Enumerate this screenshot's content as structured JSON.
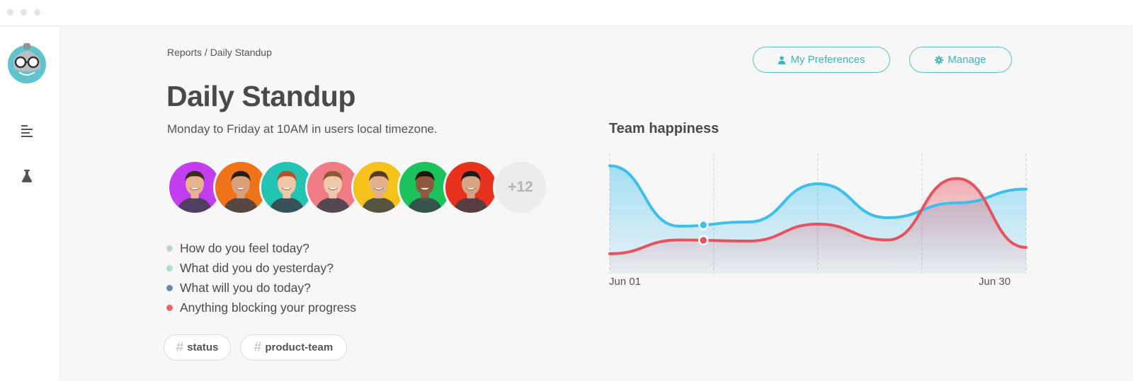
{
  "breadcrumb": "Reports / Daily Standup",
  "title": "Daily Standup",
  "subtitle": "Monday to Friday at 10AM in users local timezone.",
  "buttons": {
    "preferences": "My Preferences",
    "manage": "Manage"
  },
  "avatars": {
    "colors": [
      "#c23ef0",
      "#f0731a",
      "#24c4b4",
      "#f07c86",
      "#f5c21a",
      "#1cc25c",
      "#e8321e"
    ],
    "more": "+12"
  },
  "questions": [
    {
      "text": "How do you feel today?",
      "color": "#b7d6d8"
    },
    {
      "text": "What did you do yesterday?",
      "color": "#b7d6d8"
    },
    {
      "text": "What will you do today?",
      "color": "#6f86b0"
    },
    {
      "text": "Anything blocking your progress",
      "color": "#e96470"
    }
  ],
  "tags": [
    "status",
    "product-team"
  ],
  "chart_data": {
    "type": "area",
    "title": "Team happiness",
    "x_start": "Jun 01",
    "x_end": "Jun 30",
    "series": [
      {
        "color": "#3dbfee",
        "values": [
          95,
          38,
          42,
          78,
          46,
          60,
          73
        ]
      },
      {
        "color": "#e8525f",
        "values": [
          12,
          25,
          24,
          40,
          25,
          83,
          18
        ]
      }
    ],
    "markers": [
      {
        "series": 0,
        "at": 1.35
      },
      {
        "series": 1,
        "at": 1.35
      }
    ]
  }
}
